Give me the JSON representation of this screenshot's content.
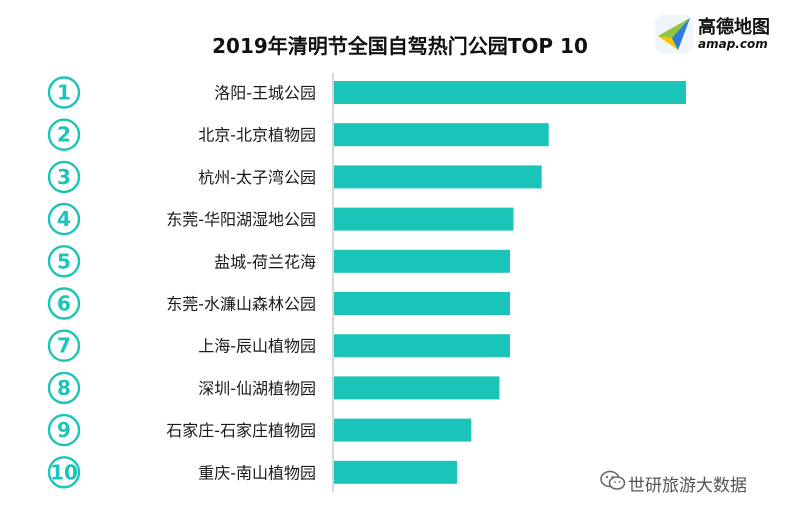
{
  "chart_data": {
    "type": "bar",
    "orientation": "horizontal",
    "title": "2019年清明节全国自驾热门公园TOP 10",
    "ranks": [
      "①",
      "②",
      "③",
      "④",
      "⑤",
      "⑥",
      "⑦",
      "⑧",
      "⑨",
      "⑩"
    ],
    "categories": [
      "洛阳-王城公园",
      "北京-北京植物园",
      "杭州-太子湾公园",
      "东莞-华阳湖湿地公园",
      "盐城-荷兰花海",
      "东莞-水濂山森林公园",
      "上海-辰山植物园",
      "深圳-仙湖植物园",
      "石家庄-石家庄植物园",
      "重庆-南山植物园"
    ],
    "values": [
      100,
      61,
      59,
      51,
      50,
      50,
      50,
      47,
      39,
      35
    ],
    "xlim": [
      0,
      100
    ],
    "grid": false,
    "legend": "none"
  },
  "colors": {
    "bar": "#1bc4b8",
    "rank_circle": "#1bc4b8",
    "axis": "#b0b0b0",
    "title": "#111111",
    "logo_blue": "#2a7de1",
    "logo_green": "#8dc63f",
    "logo_yellow": "#f7c600"
  },
  "brand": {
    "logo_icon": "amap-paper-plane-icon",
    "name_cn": "高德地图",
    "name_en": "amap.com"
  },
  "watermark": {
    "icon": "wechat-icon",
    "text": "世研旅游大数据"
  }
}
